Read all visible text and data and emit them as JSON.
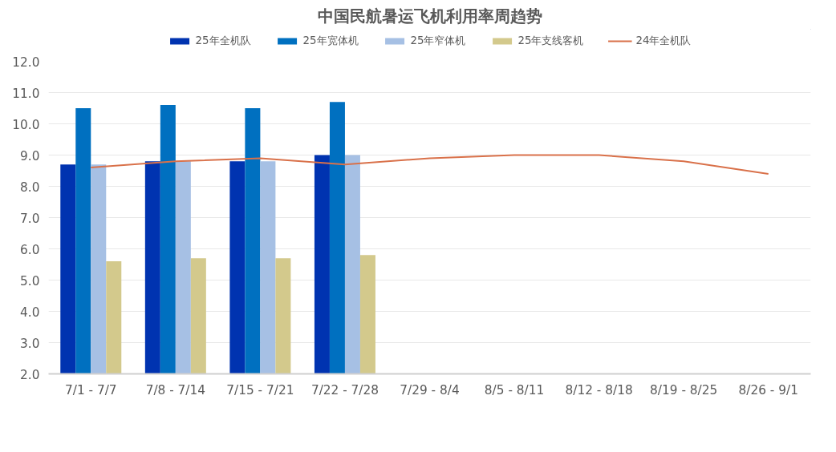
{
  "chart_data": {
    "type": "bar",
    "title": "中国民航暑运飞机利用率周趋势",
    "categories": [
      "7/1 - 7/7",
      "7/8 - 7/14",
      "7/15 - 7/21",
      "7/22 - 7/28",
      "7/29 - 8/4",
      "8/5 - 8/11",
      "8/12 - 8/18",
      "8/19 - 8/25",
      "8/26 - 9/1"
    ],
    "series": [
      {
        "name": "25年全机队",
        "color": "#0033b0",
        "values": [
          8.7,
          8.8,
          8.8,
          9.0,
          null,
          null,
          null,
          null,
          null
        ]
      },
      {
        "name": "25年宽体机",
        "color": "#0070c0",
        "values": [
          10.5,
          10.6,
          10.5,
          10.7,
          null,
          null,
          null,
          null,
          null
        ]
      },
      {
        "name": "25年窄体机",
        "color": "#a6c0e4",
        "values": [
          8.7,
          8.8,
          8.8,
          9.0,
          null,
          null,
          null,
          null,
          null
        ]
      },
      {
        "name": "25年支线客机",
        "color": "#d3c98c",
        "values": [
          5.6,
          5.7,
          5.7,
          5.8,
          null,
          null,
          null,
          null,
          null
        ]
      },
      {
        "name": "24年全机队",
        "type": "line",
        "color": "#d9714a",
        "values": [
          8.6,
          8.8,
          8.9,
          8.7,
          8.9,
          9.0,
          9.0,
          8.8,
          8.4
        ]
      }
    ],
    "ylim": [
      2,
      12
    ],
    "yticks": [
      {
        "value": 2,
        "label": "2.0"
      },
      {
        "value": 3,
        "label": "3.0"
      },
      {
        "value": 4,
        "label": "4.0"
      },
      {
        "value": 5,
        "label": "5.0"
      },
      {
        "value": 6,
        "label": "6.0"
      },
      {
        "value": 7,
        "label": "7.0"
      },
      {
        "value": 8,
        "label": "8.0"
      },
      {
        "value": 9,
        "label": "9.0"
      },
      {
        "value": 10,
        "label": "10.0"
      },
      {
        "value": 11,
        "label": "11.0"
      },
      {
        "value": 12,
        "label": "12.0"
      }
    ],
    "grid": "y",
    "legend": "top",
    "marker": "none",
    "line_style": "solid"
  }
}
